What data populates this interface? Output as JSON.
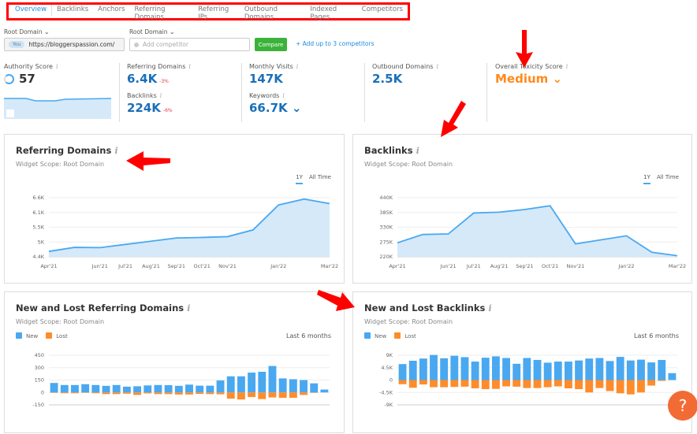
{
  "tabs": [
    "Overview",
    "Backlinks",
    "Anchors",
    "Referring Domains",
    "Referring IPs",
    "Outbound Domains",
    "Indexed Pages",
    "Competitors"
  ],
  "domain": {
    "label1": "Root Domain",
    "label2": "Root Domain",
    "you": "You",
    "url": "https://bloggerspassion.com/",
    "competitor_placeholder": "Add competitor",
    "compare": "Compare",
    "add": "Add up to 3 competitors"
  },
  "metrics": {
    "authority": {
      "label": "Authority Score",
      "value": "57"
    },
    "ref_domains": {
      "label": "Referring Domains",
      "value": "6.4K",
      "change": "-3%"
    },
    "backlinks": {
      "label": "Backlinks",
      "value": "224K",
      "change": "-6%"
    },
    "visits": {
      "label": "Monthly Visits",
      "value": "147K"
    },
    "keywords": {
      "label": "Keywords",
      "value": "66.7K"
    },
    "outbound": {
      "label": "Outbound Domains",
      "value": "2.5K"
    },
    "toxicity": {
      "label": "Overall Toxicity Score",
      "value": "Medium"
    }
  },
  "colors": {
    "accent": "#1d8ce0",
    "new": "#4aa8f0",
    "lost": "#ff8c2a",
    "toxicity": "#ff8a1c"
  },
  "chart_data": [
    {
      "type": "area",
      "title": "Referring Domains",
      "subtitle": "Widget Scope: Root Domain",
      "ranges": [
        "1Y",
        "All Time"
      ],
      "selected_range": "1Y",
      "x": [
        "Apr'21",
        "May'21",
        "Jun'21",
        "Jul'21",
        "Aug'21",
        "Sep'21",
        "Oct'21",
        "Nov'21",
        "Dec'21",
        "Jan'22",
        "Feb'22",
        "Mar'22"
      ],
      "xlabels": [
        "Apr'21",
        "",
        "Jun'21",
        "Jul'21",
        "Aug'21",
        "Sep'21",
        "Oct'21",
        "Nov'21",
        "",
        "Jan'22",
        "",
        "Mar'22"
      ],
      "values": [
        4600,
        4750,
        4740,
        4860,
        4980,
        5100,
        5120,
        5150,
        5400,
        6330,
        6550,
        6380
      ],
      "yticks": [
        "4.4K",
        "5K",
        "5.5K",
        "6.1K",
        "6.6K"
      ],
      "ylim": [
        4400,
        6600
      ]
    },
    {
      "type": "area",
      "title": "Backlinks",
      "subtitle": "Widget Scope: Root Domain",
      "ranges": [
        "1Y",
        "All Time"
      ],
      "selected_range": "1Y",
      "x": [
        "Apr'21",
        "May'21",
        "Jun'21",
        "Jul'21",
        "Aug'21",
        "Sep'21",
        "Oct'21",
        "Nov'21",
        "Dec'21",
        "Jan'22",
        "Feb'22",
        "Mar'22"
      ],
      "xlabels": [
        "Apr'21",
        "",
        "Jun'21",
        "Jul'21",
        "Aug'21",
        "Sep'21",
        "Oct'21",
        "Nov'21",
        "",
        "Jan'22",
        "",
        "Mar'22"
      ],
      "values": [
        272000,
        303000,
        305000,
        383000,
        386000,
        396000,
        410000,
        268000,
        283000,
        298000,
        237000,
        224000
      ],
      "yticks": [
        "220K",
        "275K",
        "330K",
        "385K",
        "440K"
      ],
      "ylim": [
        220000,
        440000
      ]
    },
    {
      "type": "bar",
      "title": "New and Lost Referring Domains",
      "subtitle": "Widget Scope: Root Domain",
      "legend": [
        "New",
        "Lost"
      ],
      "period": "Last 6 months",
      "series": [
        {
          "name": "New",
          "values": [
            115,
            90,
            90,
            100,
            90,
            80,
            90,
            70,
            75,
            85,
            90,
            88,
            80,
            95,
            82,
            82,
            145,
            195,
            195,
            240,
            250,
            320,
            170,
            160,
            150,
            110,
            35
          ]
        },
        {
          "name": "Lost",
          "values": [
            -5,
            -10,
            -10,
            -5,
            -10,
            -20,
            -20,
            -15,
            -30,
            -12,
            -20,
            -20,
            -25,
            -25,
            -18,
            -20,
            -22,
            -75,
            -85,
            -55,
            -80,
            -60,
            -65,
            -65,
            -30,
            -5,
            0
          ]
        }
      ],
      "yticks": [
        "-150",
        "0",
        "150",
        "300",
        "450"
      ],
      "ylim": [
        -150,
        450
      ]
    },
    {
      "type": "bar",
      "title": "New and Lost Backlinks",
      "subtitle": "Widget Scope: Root Domain",
      "legend": [
        "New",
        "Lost"
      ],
      "period": "Last 6 months",
      "series": [
        {
          "name": "New",
          "values": [
            5800,
            7000,
            7800,
            9100,
            7900,
            8800,
            8300,
            6700,
            8100,
            8600,
            8000,
            5900,
            8000,
            7300,
            6300,
            6700,
            6700,
            7100,
            7800,
            8000,
            6900,
            8400,
            7100,
            7400,
            6400,
            7300,
            2500
          ]
        },
        {
          "name": "Lost",
          "values": [
            -1500,
            -2800,
            -1600,
            -2600,
            -2600,
            -2500,
            -2400,
            -3000,
            -3300,
            -3200,
            -2300,
            -2400,
            -2900,
            -2900,
            -2600,
            -2300,
            -3000,
            -3300,
            -4500,
            -2900,
            -4000,
            -4800,
            -5200,
            -4500,
            -2000,
            -300,
            0
          ]
        }
      ],
      "yticks": [
        "-9K",
        "-4.5K",
        "0",
        "4.5K",
        "9K"
      ],
      "ylim": [
        -9000,
        9000
      ]
    }
  ],
  "help": "?"
}
